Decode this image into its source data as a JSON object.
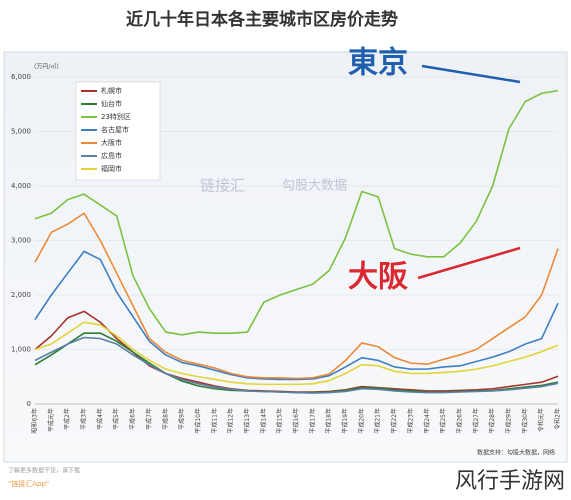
{
  "chart_data": {
    "type": "line",
    "title": "近几十年日本各主要城市区房价走势",
    "y_label": "(万円/㎡)",
    "categories": [
      "昭和63年",
      "平成元年",
      "平成2年",
      "平成3年",
      "平成4年",
      "平成5年",
      "平成6年",
      "平成7年",
      "平成8年",
      "平成9年",
      "平成10年",
      "平成11年",
      "平成12年",
      "平成13年",
      "平成14年",
      "平成15年",
      "平成16年",
      "平成17年",
      "平成18年",
      "平成19年",
      "平成20年",
      "平成21年",
      "平成22年",
      "平成23年",
      "平成24年",
      "平成25年",
      "平成26年",
      "平成27年",
      "平成28年",
      "平成29年",
      "平成30年",
      "令和元年",
      "令和2年"
    ],
    "series": [
      {
        "name": "札幌市",
        "color": "#a8322d",
        "values": [
          1000,
          1250,
          1580,
          1700,
          1500,
          1200,
          950,
          700,
          560,
          470,
          400,
          330,
          280,
          250,
          240,
          230,
          220,
          220,
          230,
          260,
          320,
          300,
          280,
          260,
          240,
          240,
          250,
          260,
          280,
          320,
          360,
          400,
          510
        ]
      },
      {
        "name": "仙台市",
        "color": "#2e7d32",
        "values": [
          720,
          900,
          1100,
          1300,
          1300,
          1150,
          950,
          750,
          560,
          420,
          330,
          280,
          250,
          240,
          230,
          220,
          210,
          210,
          220,
          250,
          300,
          290,
          260,
          240,
          220,
          220,
          230,
          240,
          250,
          280,
          310,
          340,
          400
        ]
      },
      {
        "name": "23特別区",
        "color": "#7cc142",
        "values": [
          3400,
          3500,
          3750,
          3850,
          3650,
          3450,
          2350,
          1750,
          1320,
          1270,
          1320,
          1300,
          1300,
          1320,
          1870,
          2000,
          2100,
          2200,
          2450,
          3050,
          3900,
          3800,
          2850,
          2750,
          2700,
          2700,
          2950,
          3350,
          4000,
          5050,
          5550,
          5700,
          5750
        ]
      },
      {
        "name": "名古屋市",
        "color": "#3d7fc4",
        "values": [
          1550,
          2000,
          2400,
          2800,
          2650,
          2050,
          1600,
          1150,
          900,
          760,
          700,
          620,
          540,
          480,
          460,
          450,
          450,
          460,
          520,
          680,
          850,
          800,
          680,
          640,
          640,
          680,
          700,
          780,
          860,
          960,
          1100,
          1200,
          1850
        ]
      },
      {
        "name": "大阪市",
        "color": "#ec8a3a",
        "values": [
          2600,
          3150,
          3300,
          3500,
          3000,
          2400,
          1800,
          1200,
          950,
          800,
          730,
          660,
          560,
          500,
          480,
          480,
          470,
          480,
          550,
          800,
          1120,
          1050,
          850,
          750,
          730,
          820,
          900,
          1000,
          1200,
          1400,
          1600,
          2000,
          2850
        ]
      },
      {
        "name": "広島市",
        "color": "#5b7fa6",
        "values": [
          800,
          950,
          1100,
          1220,
          1200,
          1100,
          900,
          720,
          560,
          450,
          370,
          310,
          270,
          240,
          230,
          220,
          210,
          200,
          210,
          230,
          280,
          270,
          240,
          220,
          210,
          210,
          220,
          230,
          240,
          260,
          290,
          320,
          380
        ]
      },
      {
        "name": "福岡市",
        "color": "#e3d43a",
        "values": [
          1000,
          1100,
          1300,
          1500,
          1450,
          1250,
          1000,
          800,
          640,
          560,
          500,
          450,
          400,
          370,
          360,
          360,
          360,
          370,
          430,
          560,
          720,
          700,
          600,
          560,
          560,
          580,
          600,
          640,
          700,
          780,
          860,
          960,
          1080
        ]
      }
    ],
    "ylim": [
      0,
      6000
    ],
    "yticks": [
      0,
      {
        "value": 1000,
        "label": "1,000"
      },
      {
        "value": 2000,
        "label": "2,000"
      },
      {
        "value": 3000,
        "label": "3,000"
      },
      {
        "value": 4000,
        "label": "4,000"
      },
      {
        "value": 5000,
        "label": "5,000"
      },
      {
        "value": 6000,
        "label": "6,000"
      }
    ],
    "grid": true,
    "legend": "top-left",
    "annotations": [
      "東京",
      "大阪"
    ],
    "source": "数据支持：勾股大数据，网络",
    "watermarks": [
      "链接汇",
      "勾股大数据"
    ]
  },
  "footer": {
    "line1": "了解更多数据干货，请下载",
    "line2": "\"链接汇App\"",
    "brand": "风行手游网"
  }
}
